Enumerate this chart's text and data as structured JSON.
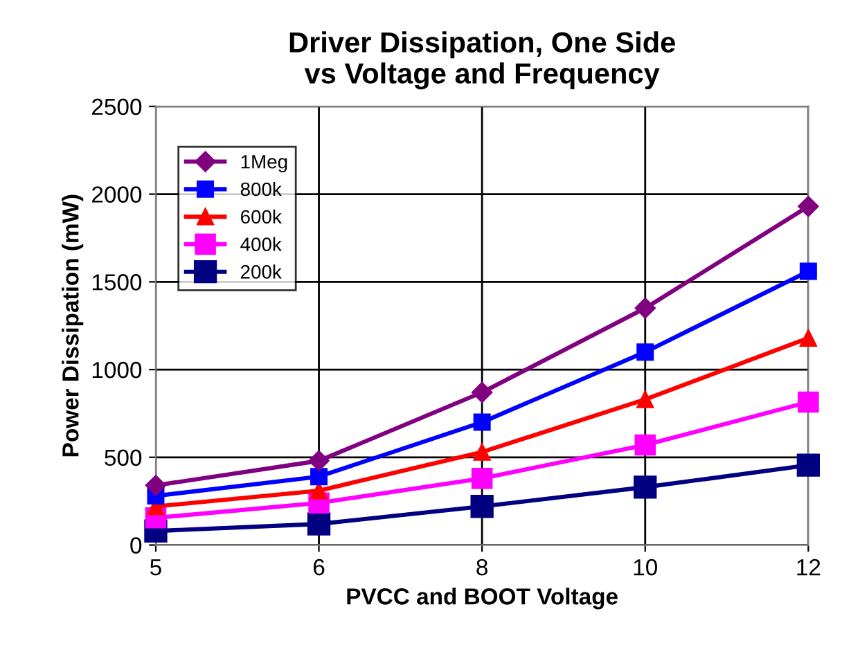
{
  "chart_data": {
    "type": "line",
    "title": "Driver Dissipation, One Side\nvs Voltage and Frequency",
    "xlabel": "PVCC and BOOT Voltage",
    "ylabel": "Power Dissipation (mW)",
    "categories": [
      "5",
      "6",
      "8",
      "10",
      "12"
    ],
    "series": [
      {
        "name": "1Meg",
        "color": "#800080",
        "marker": "diamond",
        "values": [
          340,
          480,
          870,
          1350,
          1930
        ]
      },
      {
        "name": "800k",
        "color": "#0000ff",
        "marker": "square",
        "values": [
          280,
          390,
          700,
          1100,
          1560
        ]
      },
      {
        "name": "600k",
        "color": "#ff0000",
        "marker": "triangle",
        "values": [
          220,
          310,
          530,
          830,
          1180
        ]
      },
      {
        "name": "400k",
        "color": "#ff00ff",
        "marker": "square",
        "values": [
          155,
          240,
          380,
          570,
          815
        ]
      },
      {
        "name": "200k",
        "color": "#000080",
        "marker": "square",
        "values": [
          80,
          120,
          220,
          330,
          455
        ]
      }
    ],
    "ylim": [
      0,
      2500
    ],
    "yticks": [
      0,
      500,
      1000,
      1500,
      2000,
      2500
    ],
    "grid": true,
    "legend": "top left",
    "line_style": "solid"
  }
}
